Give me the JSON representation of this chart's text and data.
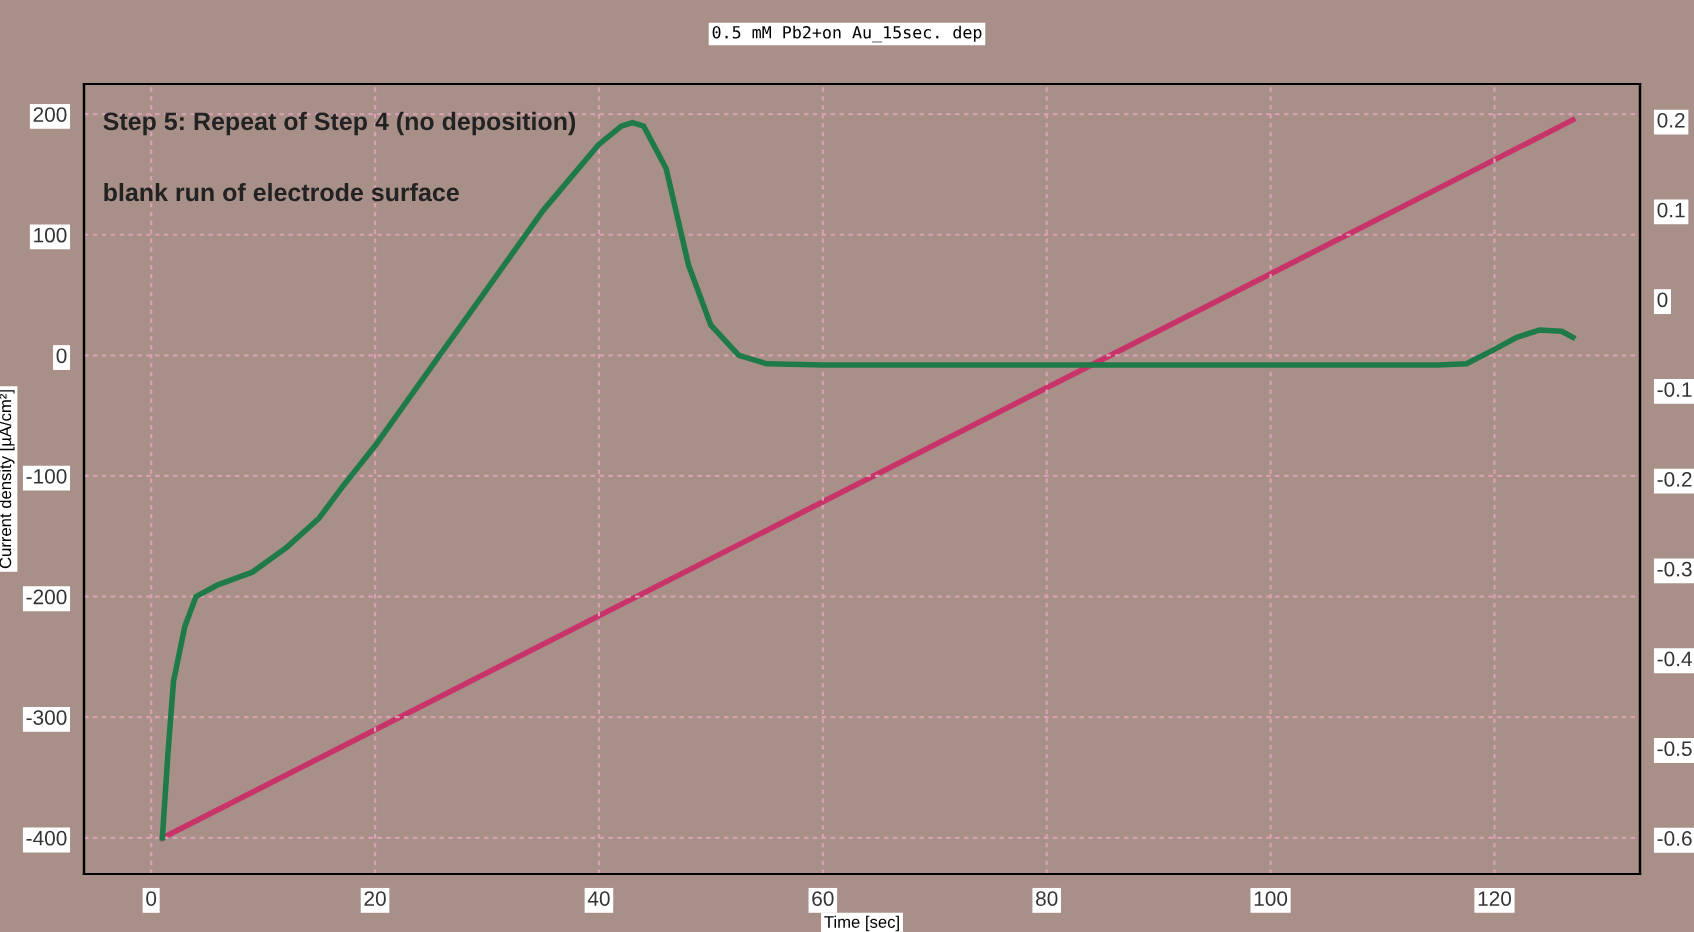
{
  "chart_data": {
    "type": "line",
    "title": "0.5 mM Pb2+on Au_15sec. dep",
    "xlabel": "Time [sec]",
    "ylabel": "Current density [µA/cm²]",
    "annotations": [
      "Step 5: Repeat of Step 4 (no deposition)",
      "blank run of electrode surface"
    ],
    "series": [
      {
        "color": "#1f7a4a",
        "axis": "y",
        "x": [
          1,
          1.5,
          2,
          3,
          4,
          6,
          9,
          12,
          15,
          17,
          20,
          25,
          30,
          35,
          40,
          42,
          43,
          44,
          46,
          48,
          50,
          52.5,
          55,
          60,
          80,
          100,
          115,
          117.5,
          120,
          122,
          124,
          126,
          127
        ],
        "values": [
          -400,
          -330,
          -270,
          -225,
          -200,
          -190,
          -180,
          -160,
          -135,
          -110,
          -75,
          -10,
          55,
          120,
          175,
          190,
          193,
          190,
          155,
          75,
          25,
          0,
          -7,
          -8,
          -8,
          -8,
          -8,
          -7,
          5,
          15,
          21,
          20,
          15
        ]
      },
      {
        "color": "#c8346a",
        "axis": "y2",
        "x": [
          1,
          127
        ],
        "values": [
          -0.6,
          0.2
        ]
      }
    ],
    "xlim": [
      -6,
      133
    ],
    "xticks": [
      0,
      20,
      40,
      60,
      80,
      100,
      120
    ],
    "ylim": [
      -430,
      225
    ],
    "yticks": [
      -400,
      -300,
      -200,
      -100,
      0,
      100,
      200
    ],
    "y2lim": [
      -0.64,
      0.24
    ],
    "y2ticks": [
      -0.6,
      -0.5,
      -0.4,
      -0.3,
      -0.2,
      -0.1,
      0,
      0.1,
      0.2
    ],
    "grid": true,
    "line_style": "solid",
    "marker": "none"
  }
}
